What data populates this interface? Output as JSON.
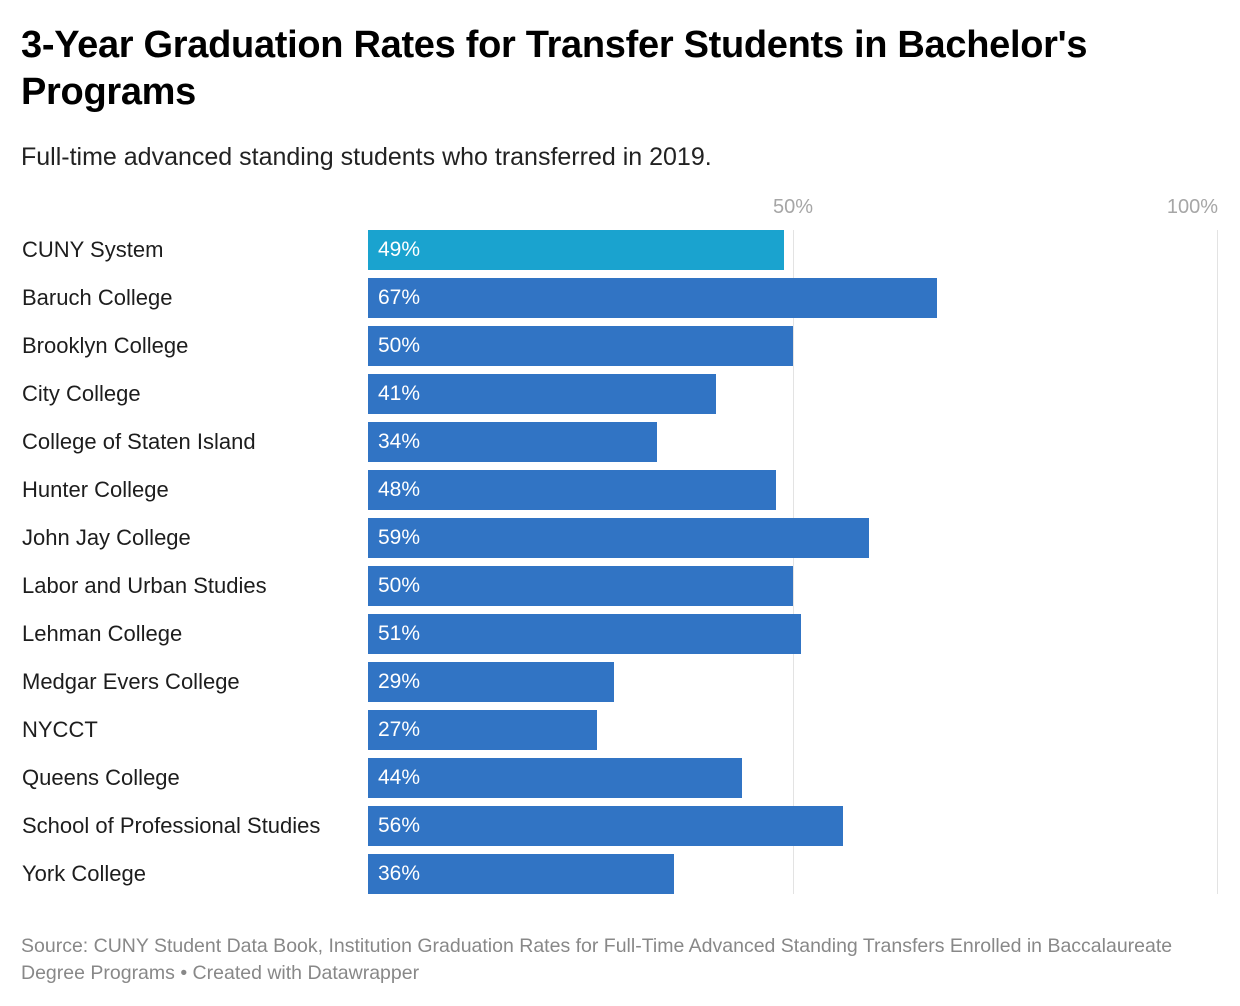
{
  "header": {
    "title": "3-Year Graduation Rates for Transfer Students in Bachelor's Programs",
    "subtitle": "Full-time advanced standing students who transferred in 2019."
  },
  "axis": {
    "ticks": [
      {
        "label": "50%",
        "value": 50
      },
      {
        "label": "100%",
        "value": 100
      }
    ]
  },
  "colors": {
    "highlight": "#1aa3cf",
    "bar": "#3174c4"
  },
  "footer": {
    "source": "Source: CUNY Student Data Book, Institution Graduation Rates for Full-Time Advanced Standing Transfers Enrolled in Baccalaureate Degree Programs • Created with Datawrapper"
  },
  "chart_data": {
    "type": "bar",
    "orientation": "horizontal",
    "title": "3-Year Graduation Rates for Transfer Students in Bachelor's Programs",
    "subtitle": "Full-time advanced standing students who transferred in 2019.",
    "xlabel": "",
    "ylabel": "",
    "xlim": [
      0,
      100
    ],
    "x_ticks": [
      "50%",
      "100%"
    ],
    "grid": true,
    "categories": [
      "CUNY System",
      "Baruch College",
      "Brooklyn College",
      "City College",
      "College of Staten Island",
      "Hunter College",
      "John Jay College",
      "Labor and Urban Studies",
      "Lehman College",
      "Medgar Evers College",
      "NYCCT",
      "Queens College",
      "School of Professional Studies",
      "York College"
    ],
    "values": [
      49,
      67,
      50,
      41,
      34,
      48,
      59,
      50,
      51,
      29,
      27,
      44,
      56,
      36
    ],
    "value_labels": [
      "49%",
      "67%",
      "50%",
      "41%",
      "34%",
      "48%",
      "59%",
      "50%",
      "51%",
      "29%",
      "27%",
      "44%",
      "56%",
      "36%"
    ],
    "highlighted": [
      "CUNY System"
    ],
    "source": "Source: CUNY Student Data Book, Institution Graduation Rates for Full-Time Advanced Standing Transfers Enrolled in Baccalaureate Degree Programs • Created with Datawrapper"
  }
}
